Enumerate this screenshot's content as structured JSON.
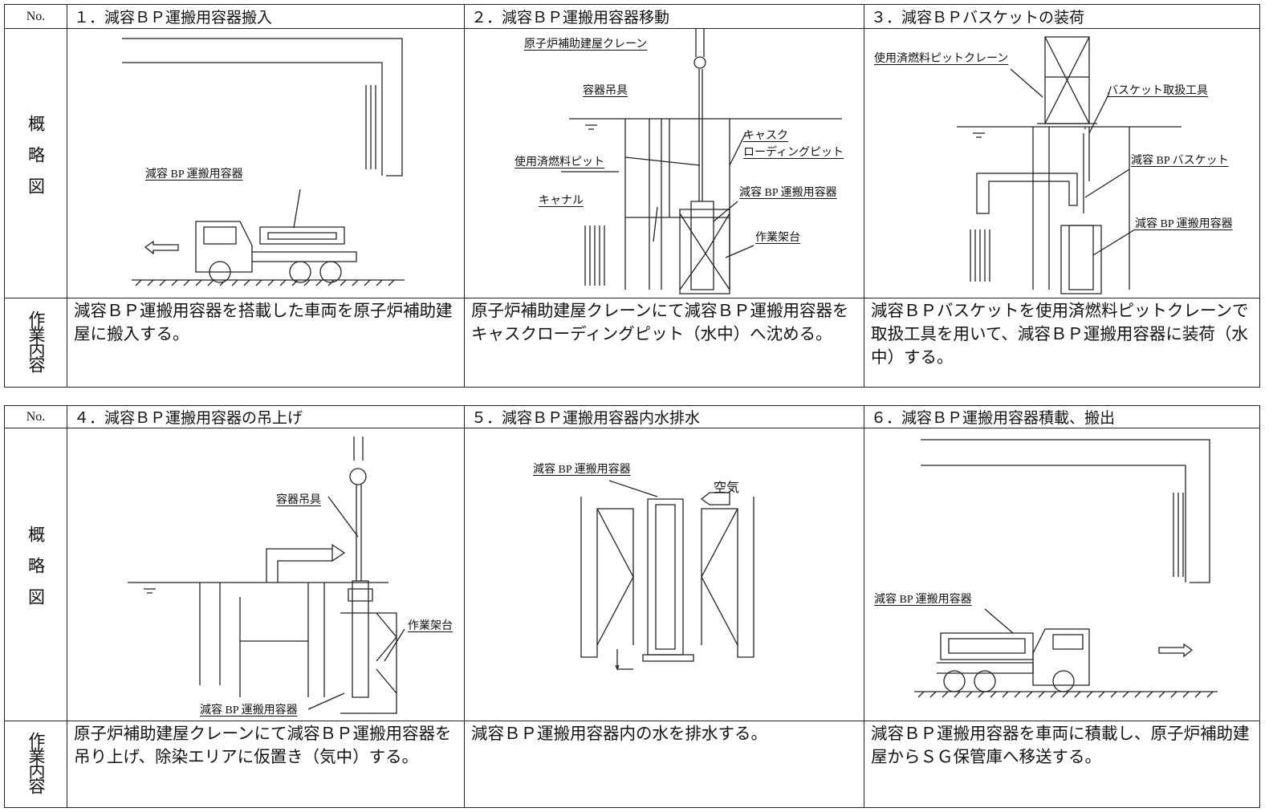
{
  "tables": [
    {
      "no_header": "No.",
      "diagram_label": "概略図",
      "work_label": "作業内容",
      "steps": [
        {
          "title": "１．減容ＢＰ運搬用容器搬入",
          "labels": [
            "減容 BP 運搬用容器"
          ],
          "description": "減容ＢＰ運搬用容器を搭載した車両を原子炉補助建屋に搬入する。"
        },
        {
          "title": "２．減容ＢＰ運搬用容器移動",
          "labels": [
            "原子炉補助建屋クレーン",
            "容器吊具",
            "キャスク",
            "ローディングピット",
            "使用済燃料ピット",
            "減容 BP 運搬用容器",
            "キャナル",
            "作業架台"
          ],
          "description": "原子炉補助建屋クレーンにて減容ＢＰ運搬用容器をキャスクローディングピット（水中）へ沈める。"
        },
        {
          "title": "３．減容ＢＰバスケットの装荷",
          "labels": [
            "使用済燃料ピットクレーン",
            "バスケット取扱工具",
            "減容 BP バスケット",
            "減容 BP 運搬用容器"
          ],
          "description": "減容ＢＰバスケットを使用済燃料ピットクレーンで取扱工具を用いて、減容ＢＰ運搬用容器に装荷（水中）する。"
        }
      ]
    },
    {
      "no_header": "No.",
      "diagram_label": "概略図",
      "work_label": "作業内容",
      "steps": [
        {
          "title": "４．減容ＢＰ運搬用容器の吊上げ",
          "labels": [
            "容器吊具",
            "作業架台",
            "減容 BP 運搬用容器"
          ],
          "description": "原子炉補助建屋クレーンにて減容ＢＰ運搬用容器を吊り上げ、除染エリアに仮置き（気中）する。"
        },
        {
          "title": "５．減容ＢＰ運搬用容器内水排水",
          "labels": [
            "減容 BP 運搬用容器",
            "空気"
          ],
          "description": "減容ＢＰ運搬用容器内の水を排水する。"
        },
        {
          "title": "６．減容ＢＰ運搬用容器積載、搬出",
          "labels": [
            "減容 BP 運搬用容器"
          ],
          "description": "減容ＢＰ運搬用容器を車両に積載し、原子炉補助建屋からＳＧ保管庫へ移送する。"
        }
      ]
    }
  ]
}
